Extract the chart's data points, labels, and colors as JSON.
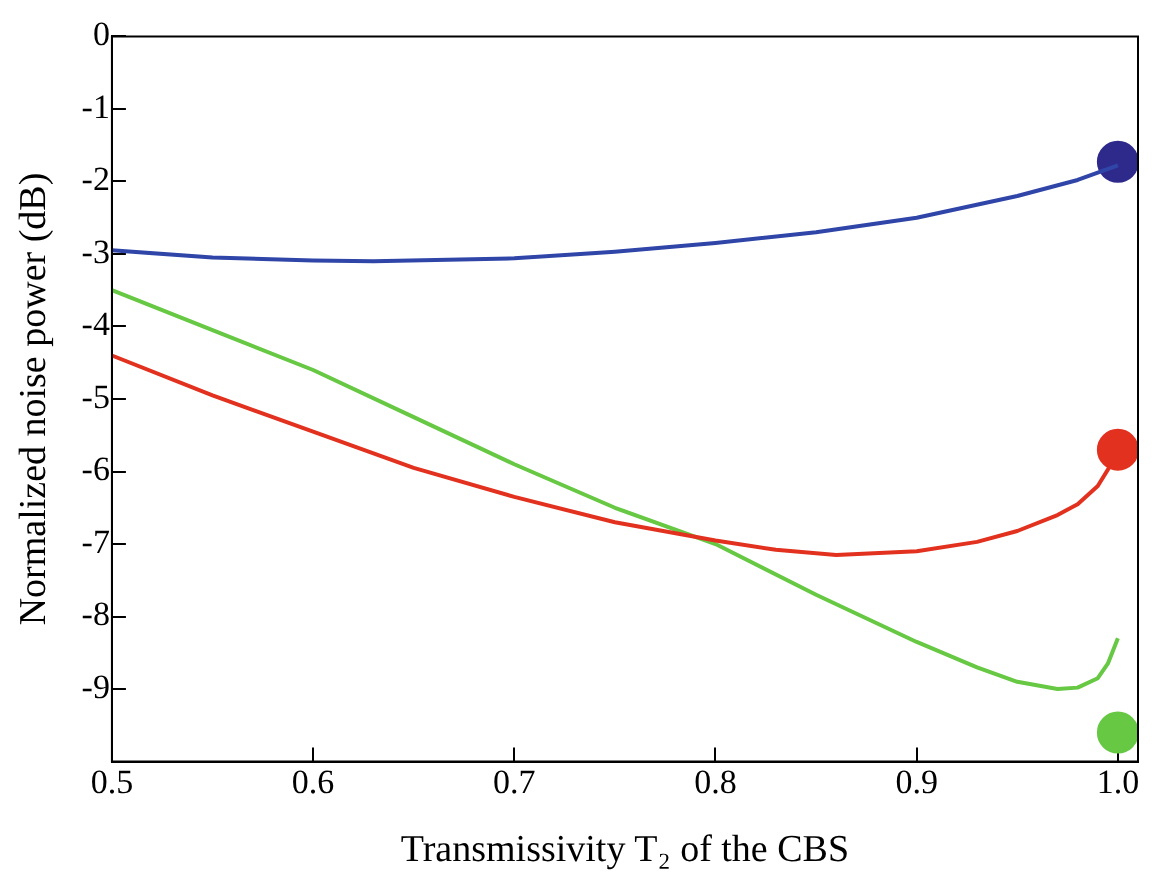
{
  "chart_data": {
    "type": "line",
    "xlabel": "Transmissivity T₂ of the CBS",
    "ylabel": "Normalized noise power (dB)",
    "xlim": [
      0.5,
      1.01
    ],
    "ylim": [
      -10,
      0
    ],
    "xticks": [
      0.5,
      0.6,
      0.7,
      0.8,
      0.9,
      {
        "value": 1,
        "label": "1.0"
      }
    ],
    "yticks": [
      0,
      -1,
      -2,
      -3,
      -4,
      -5,
      -6,
      -7,
      -8,
      -9
    ],
    "grid": false,
    "legend": false,
    "marker": "none",
    "line_style": "solid",
    "series": [
      {
        "color": "#2f45a8",
        "x": [
          0.5,
          0.55,
          0.6,
          0.63,
          0.7,
          0.75,
          0.8,
          0.85,
          0.9,
          0.95,
          0.98,
          1.0
        ],
        "values": [
          -2.95,
          -3.05,
          -3.09,
          -3.1,
          -3.06,
          -2.97,
          -2.85,
          -2.7,
          -2.5,
          -2.2,
          -1.98,
          -1.78
        ]
      },
      {
        "color": "#e2321f",
        "x": [
          0.5,
          0.55,
          0.6,
          0.65,
          0.7,
          0.75,
          0.8,
          0.83,
          0.86,
          0.9,
          0.93,
          0.95,
          0.97,
          0.98,
          0.99,
          1.0
        ],
        "values": [
          -4.4,
          -4.95,
          -5.45,
          -5.95,
          -6.35,
          -6.7,
          -6.95,
          -7.08,
          -7.15,
          -7.1,
          -6.97,
          -6.82,
          -6.6,
          -6.45,
          -6.2,
          -5.75
        ]
      },
      {
        "color": "#66c843",
        "x": [
          0.5,
          0.55,
          0.6,
          0.65,
          0.7,
          0.75,
          0.8,
          0.85,
          0.9,
          0.93,
          0.95,
          0.97,
          0.98,
          0.99,
          0.995,
          1.0
        ],
        "values": [
          -3.5,
          -4.05,
          -4.6,
          -5.25,
          -5.9,
          -6.5,
          -7.0,
          -7.7,
          -8.35,
          -8.7,
          -8.9,
          -9.0,
          -8.98,
          -8.85,
          -8.65,
          -8.3
        ]
      },
      {
        "type": "scatter",
        "marker": "circle",
        "color": "#2e2a8c",
        "x": [
          1.0
        ],
        "values": [
          -1.73
        ]
      },
      {
        "type": "scatter",
        "marker": "circle",
        "color": "#e2321f",
        "x": [
          1.0
        ],
        "values": [
          -5.7
        ]
      },
      {
        "type": "scatter",
        "marker": "circle",
        "color": "#66c843",
        "x": [
          1.0
        ],
        "values": [
          -9.6
        ]
      }
    ]
  }
}
